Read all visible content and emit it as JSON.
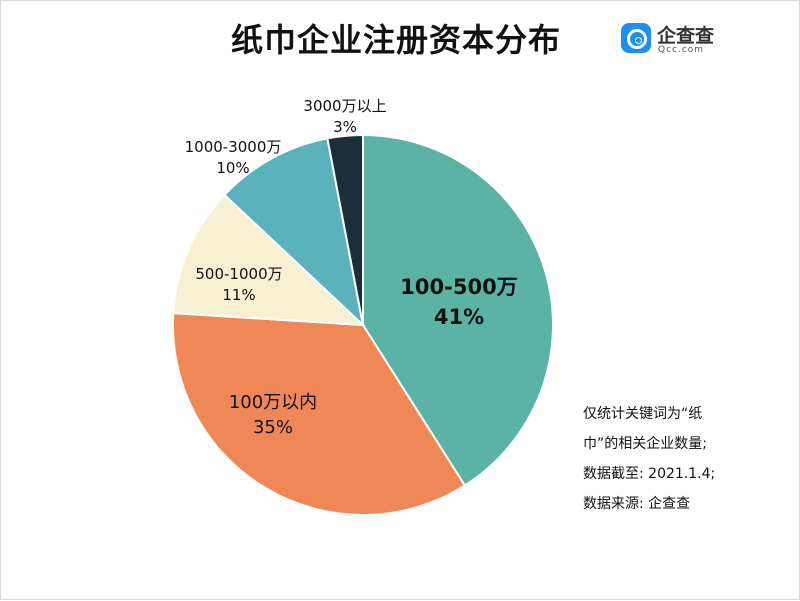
{
  "chart_data": {
    "type": "pie",
    "title": "纸巾企业注册资本分布",
    "categories": [
      "100-500万",
      "100万以内",
      "500-1000万",
      "1000-3000万",
      "3000万以上"
    ],
    "values": [
      41,
      35,
      11,
      10,
      3
    ],
    "value_labels": [
      "41%",
      "35%",
      "11%",
      "10%",
      "3%"
    ],
    "colors": [
      "#5ab3a4",
      "#f08756",
      "#f6f1d3",
      "#5ab2bd",
      "#1a2e3b"
    ],
    "start": "12 o'clock",
    "direction": "clockwise"
  },
  "logo": {
    "name": "企查查",
    "sub": "Qcc.com",
    "color": "#1d8ff0",
    "icon": "magnifier-icon"
  },
  "notes": [
    "仅统计关键词为“纸",
    "巾”的相关企业数量;",
    "数据截至: 2021.1.4;",
    "数据来源: 企查查"
  ]
}
